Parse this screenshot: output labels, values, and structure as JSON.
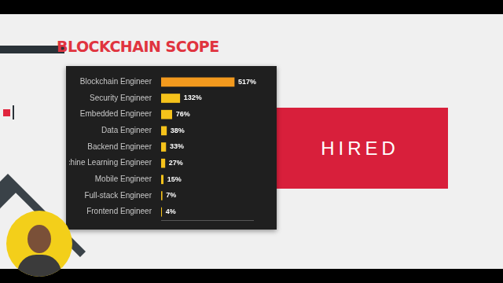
{
  "chart_data": {
    "type": "bar",
    "title": "BLOCKCHAIN SCOPE",
    "annotations": [
      "HIRED"
    ],
    "orientation": "horizontal",
    "categories": [
      "Blockchain Engineer",
      "Security Engineer",
      "Embedded Engineer",
      "Data Engineer",
      "Backend Engineer",
      "Machine Learning Engineer",
      "Mobile Engineer",
      "Full-stack Engineer",
      "Frontend Engineer"
    ],
    "values": [
      517,
      132,
      76,
      38,
      33,
      27,
      15,
      7,
      4
    ],
    "value_labels": [
      "517%",
      "132%",
      "76%",
      "38%",
      "33%",
      "27%",
      "15%",
      "7%",
      "4%"
    ],
    "colors": [
      "#f39a1e",
      "#f5c21b",
      "#f5c21b",
      "#f5c21b",
      "#f5c21b",
      "#f5c21b",
      "#f5c21b",
      "#f5c21b",
      "#f5c21b"
    ],
    "xlim": [
      0,
      650
    ],
    "grid": false,
    "data_labels": true,
    "tick_labels": "y"
  }
}
